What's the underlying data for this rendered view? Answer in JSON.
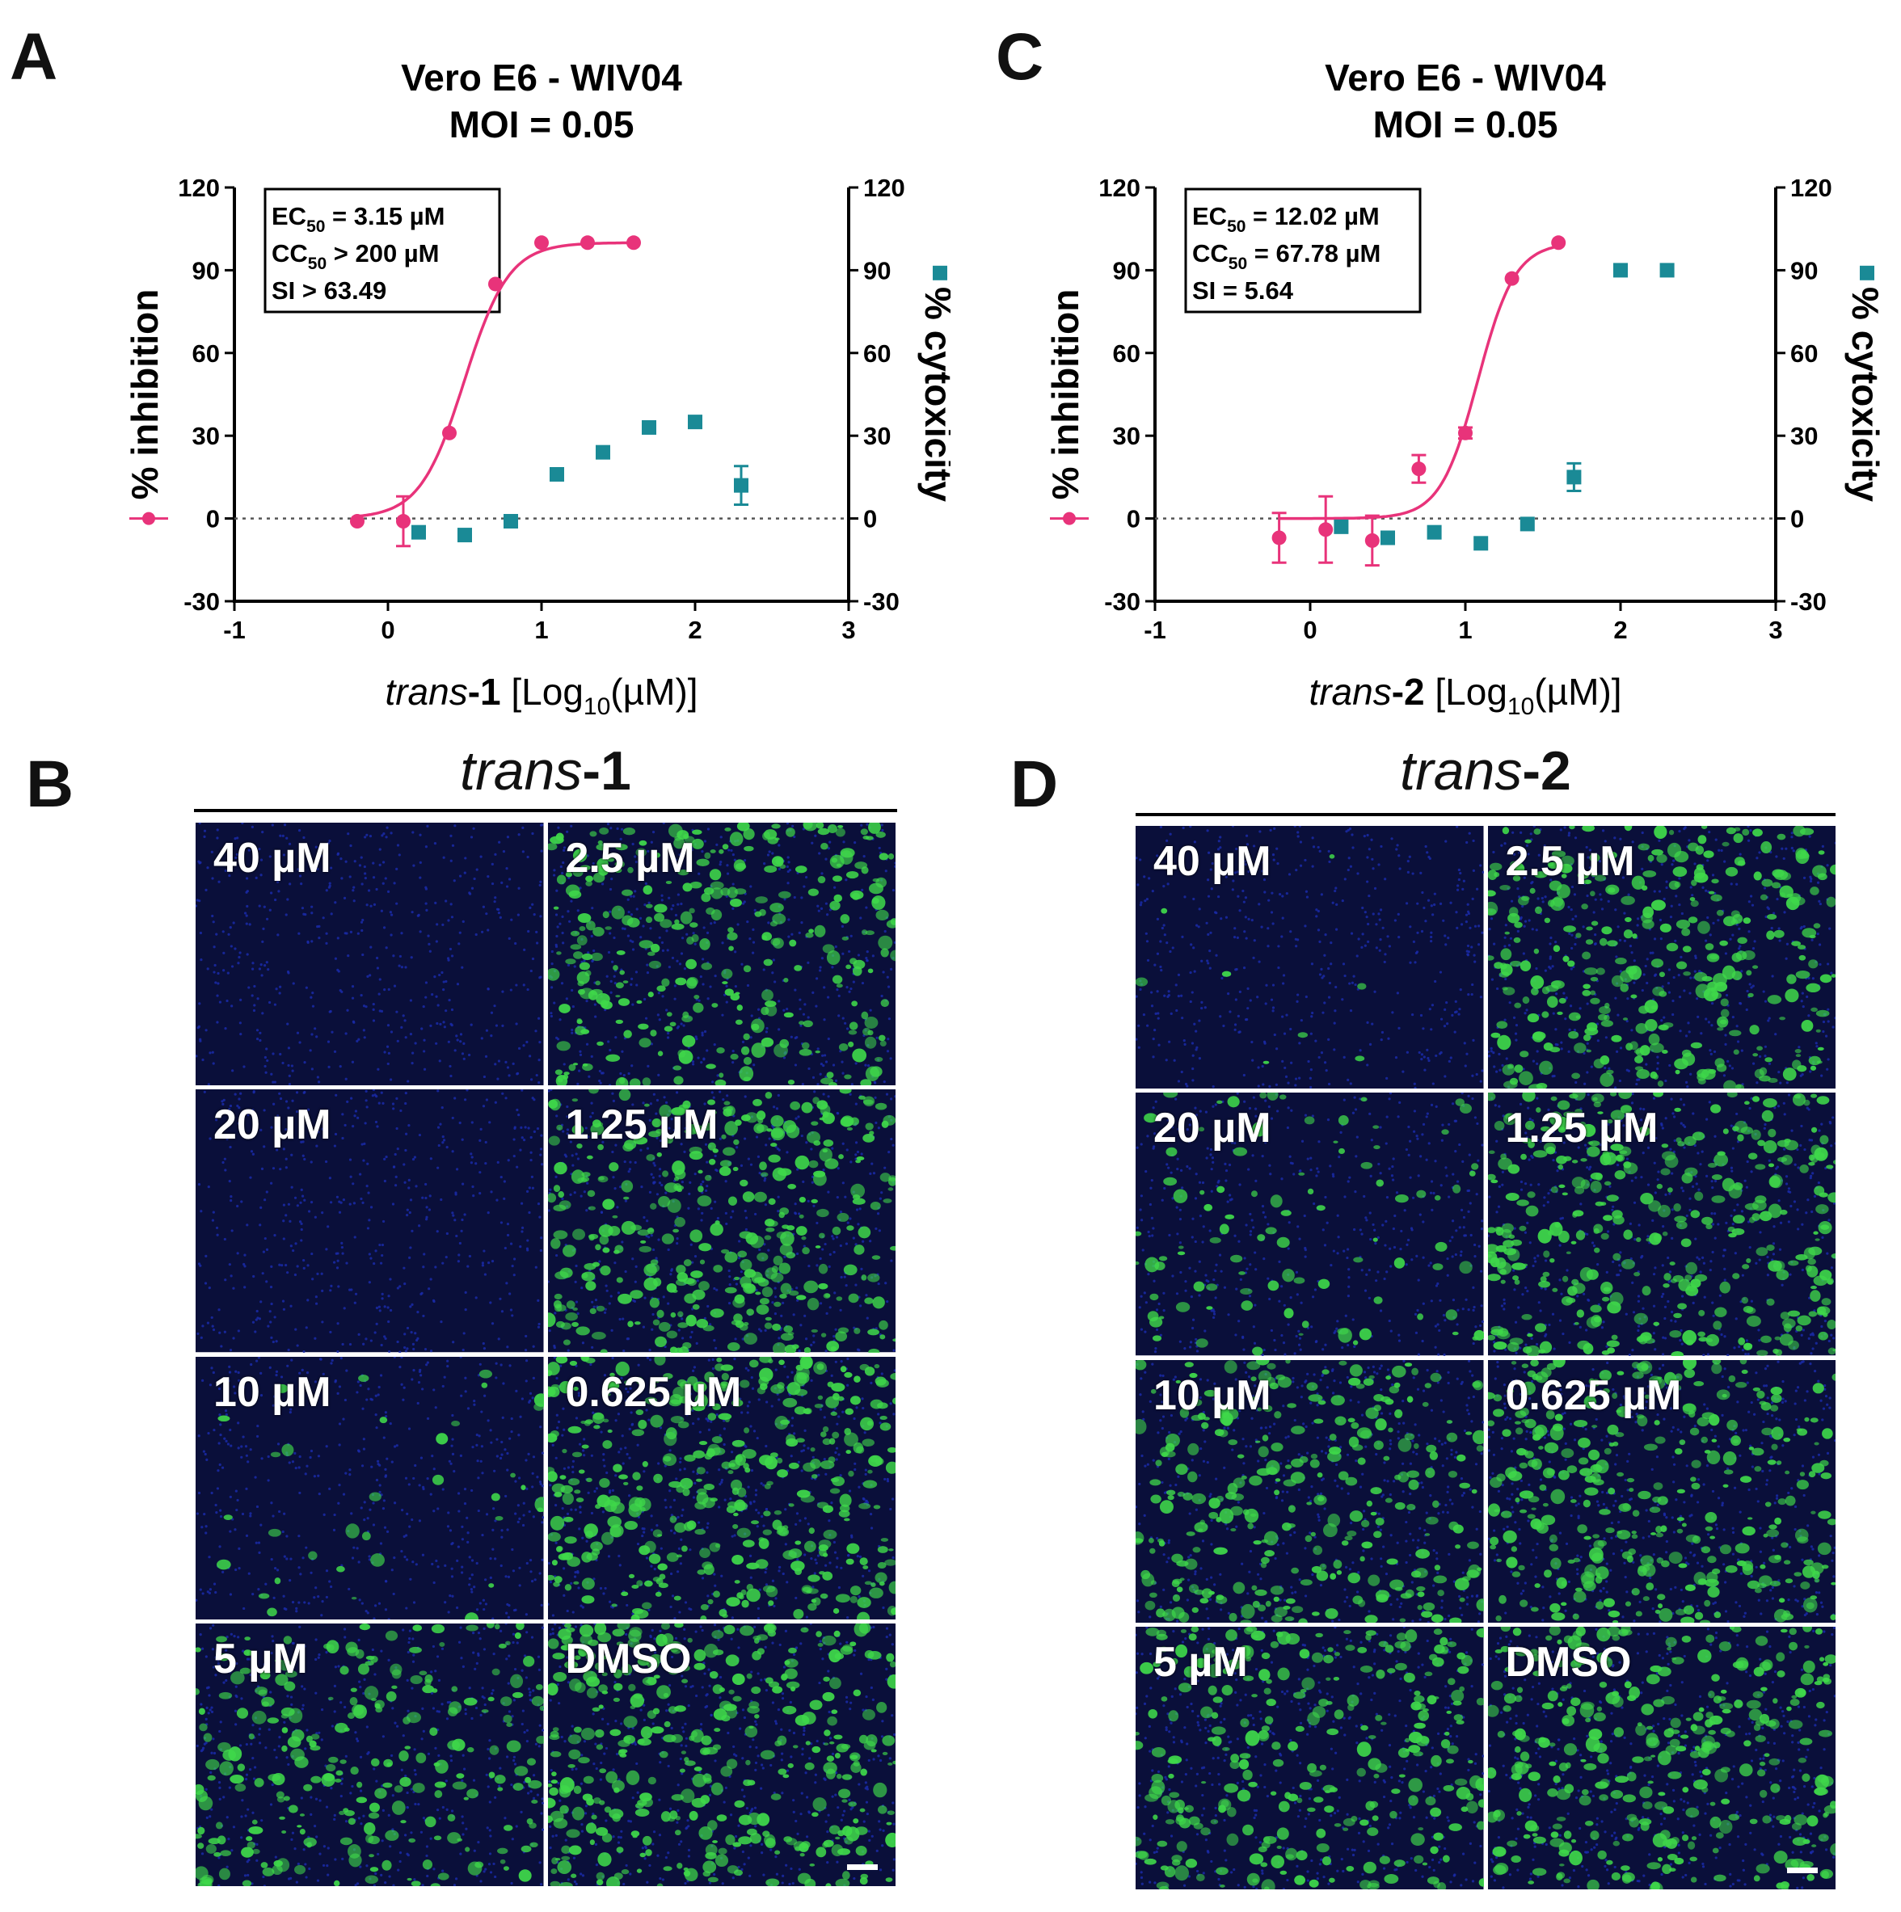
{
  "panels": {
    "a": "A",
    "b": "B",
    "c": "C",
    "d": "D"
  },
  "chart_data": [
    {
      "type": "scatter",
      "panel": "A",
      "title_line1": "Vero E6 - WIV04",
      "title_line2": "MOI = 0.05",
      "ylabel_left": "% inhibition",
      "ylabel_right": "% cytoxicity",
      "xlabel_italic": "trans",
      "xlabel_bold": "-1",
      "xlabel_unit_pre": "[Log",
      "xlabel_unit_sub": "10",
      "xlabel_unit_post": "(µM)]",
      "xlim": [
        -1,
        3
      ],
      "ylim": [
        -30,
        120
      ],
      "xticks": [
        "-1",
        "0",
        "1",
        "2",
        "3"
      ],
      "yticks": [
        "-30",
        "0",
        "30",
        "60",
        "90",
        "120"
      ],
      "stats": [
        {
          "pre": "EC",
          "sub": "50",
          "post": " = 3.15 µM"
        },
        {
          "pre": "CC",
          "sub": "50",
          "post": " > 200 µM"
        },
        {
          "pre": "SI > 63.49",
          "sub": "",
          "post": ""
        }
      ],
      "fit": {
        "bottom": 0,
        "top": 100,
        "logEC50": 0.498,
        "hill": 3.0,
        "x_range": [
          -0.2,
          1.6
        ]
      },
      "series": [
        {
          "name": "% inhibition",
          "axis": "left",
          "color": "#e8337a",
          "marker": "circle",
          "points": [
            {
              "x": -0.2,
              "y": -1,
              "err": 0
            },
            {
              "x": 0.1,
              "y": -1,
              "err": 9
            },
            {
              "x": 0.4,
              "y": 31,
              "err": 0
            },
            {
              "x": 0.7,
              "y": 85,
              "err": 0
            },
            {
              "x": 1.0,
              "y": 100,
              "err": 0
            },
            {
              "x": 1.3,
              "y": 100,
              "err": 0
            },
            {
              "x": 1.6,
              "y": 100,
              "err": 0
            }
          ]
        },
        {
          "name": "% cytoxicity",
          "axis": "right",
          "color": "#1a8a96",
          "marker": "square",
          "points": [
            {
              "x": 0.2,
              "y": -5,
              "err": 0
            },
            {
              "x": 0.5,
              "y": -6,
              "err": 0
            },
            {
              "x": 0.8,
              "y": -1,
              "err": 0
            },
            {
              "x": 1.1,
              "y": 16,
              "err": 0
            },
            {
              "x": 1.4,
              "y": 24,
              "err": 0
            },
            {
              "x": 1.7,
              "y": 33,
              "err": 0
            },
            {
              "x": 2.0,
              "y": 35,
              "err": 2
            },
            {
              "x": 2.3,
              "y": 12,
              "err": 7
            }
          ]
        }
      ],
      "offaxis_point": {
        "y": 89
      }
    },
    {
      "type": "scatter",
      "panel": "C",
      "title_line1": "Vero E6 - WIV04",
      "title_line2": "MOI = 0.05",
      "ylabel_left": "% inhibition",
      "ylabel_right": "% cytoxicity",
      "xlabel_italic": "trans",
      "xlabel_bold": "-2",
      "xlabel_unit_pre": "[Log",
      "xlabel_unit_sub": "10",
      "xlabel_unit_post": "(µM)]",
      "xlim": [
        -1,
        3
      ],
      "ylim": [
        -30,
        120
      ],
      "xticks": [
        "-1",
        "0",
        "1",
        "2",
        "3"
      ],
      "yticks": [
        "-30",
        "0",
        "30",
        "60",
        "90",
        "120"
      ],
      "stats": [
        {
          "pre": "EC",
          "sub": "50",
          "post": " = 12.02 µM"
        },
        {
          "pre": "CC",
          "sub": "50",
          "post": " = 67.78 µM"
        },
        {
          "pre": "SI = 5.64",
          "sub": "",
          "post": ""
        }
      ],
      "fit": {
        "bottom": 0,
        "top": 100,
        "logEC50": 1.08,
        "hill": 3.6,
        "x_range": [
          -0.2,
          1.6
        ]
      },
      "series": [
        {
          "name": "% inhibition",
          "axis": "left",
          "color": "#e8337a",
          "marker": "circle",
          "points": [
            {
              "x": -0.2,
              "y": -7,
              "err": 9
            },
            {
              "x": 0.1,
              "y": -4,
              "err": 12
            },
            {
              "x": 0.4,
              "y": -8,
              "err": 9
            },
            {
              "x": 0.7,
              "y": 18,
              "err": 5
            },
            {
              "x": 1.0,
              "y": 31,
              "err": 2
            },
            {
              "x": 1.3,
              "y": 87,
              "err": 0
            },
            {
              "x": 1.6,
              "y": 100,
              "err": 0
            }
          ]
        },
        {
          "name": "% cytoxicity",
          "axis": "right",
          "color": "#1a8a96",
          "marker": "square",
          "points": [
            {
              "x": 0.2,
              "y": -3,
              "err": 0
            },
            {
              "x": 0.5,
              "y": -7,
              "err": 0
            },
            {
              "x": 0.8,
              "y": -5,
              "err": 0
            },
            {
              "x": 1.1,
              "y": -9,
              "err": 0
            },
            {
              "x": 1.4,
              "y": -2,
              "err": 0
            },
            {
              "x": 1.7,
              "y": 15,
              "err": 5
            },
            {
              "x": 2.0,
              "y": 90,
              "err": 0
            },
            {
              "x": 2.3,
              "y": 90,
              "err": 0
            }
          ]
        }
      ],
      "offaxis_point": {
        "y": 89
      }
    }
  ],
  "micrographs": [
    {
      "panel": "B",
      "title_italic": "trans",
      "title_bold": "-1",
      "tiles": [
        {
          "label": "40 µM",
          "infection": 0.0,
          "seed": 11
        },
        {
          "label": "2.5 µM",
          "infection": 0.75,
          "seed": 12
        },
        {
          "label": "20 µM",
          "infection": 0.0,
          "seed": 13
        },
        {
          "label": "1.25 µM",
          "infection": 0.85,
          "seed": 14
        },
        {
          "label": "10 µM",
          "infection": 0.08,
          "seed": 15
        },
        {
          "label": "0.625 µM",
          "infection": 0.95,
          "seed": 16
        },
        {
          "label": "5 µM",
          "infection": 0.6,
          "seed": 17
        },
        {
          "label": "DMSO",
          "infection": 0.9,
          "seed": 18
        }
      ]
    },
    {
      "panel": "D",
      "title_italic": "trans",
      "title_bold": "-2",
      "tiles": [
        {
          "label": "40 µM",
          "infection": 0.02,
          "seed": 21
        },
        {
          "label": "2.5 µM",
          "infection": 0.8,
          "seed": 22
        },
        {
          "label": "20 µM",
          "infection": 0.22,
          "seed": 23
        },
        {
          "label": "1.25 µM",
          "infection": 0.85,
          "seed": 24
        },
        {
          "label": "10 µM",
          "infection": 0.7,
          "seed": 25
        },
        {
          "label": "0.625 µM",
          "infection": 0.8,
          "seed": 26
        },
        {
          "label": "5 µM",
          "infection": 0.7,
          "seed": 27
        },
        {
          "label": "DMSO",
          "infection": 0.8,
          "seed": 28
        }
      ]
    }
  ],
  "colors": {
    "inhibition": "#e8337a",
    "cytotoxicity": "#1a8a96",
    "nuclei": "#1a2aa8",
    "virus": "#3fd84a",
    "background": "#0a0f3a"
  }
}
